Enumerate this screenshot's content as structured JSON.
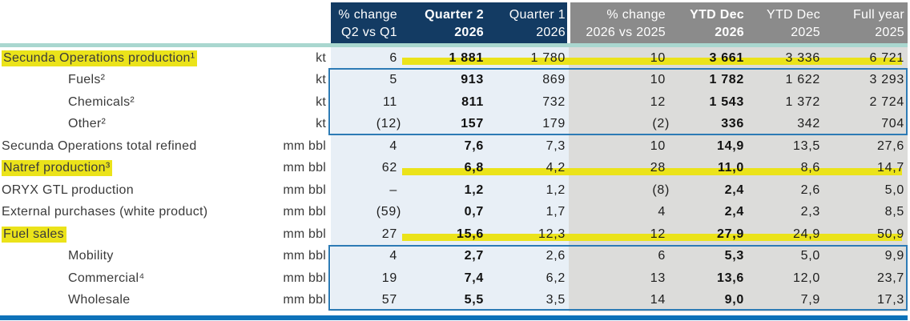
{
  "colors": {
    "navy": "#133b63",
    "header_gray": "#8b8b8b",
    "band_yellow": "#ebe31a",
    "body_blue": "#e8eff6",
    "body_gray": "#dcdcda",
    "teal_rule": "#a9d7cf",
    "box_border_blue": "#2d7bb5",
    "bottom_rule_blue": "#0e72b9",
    "label_text": "#3a3a3a",
    "number_text": "#1d1d1d",
    "header_text": "#ffffff"
  },
  "table": {
    "columns": [
      {
        "line1": "% change",
        "line2": "Q2 vs Q1",
        "group": "quarter",
        "bold": false
      },
      {
        "line1": "Quarter 2",
        "line2": "2026",
        "group": "quarter",
        "bold": true
      },
      {
        "line1": "Quarter 1",
        "line2": "2026",
        "group": "quarter",
        "bold": false
      },
      {
        "line1": "% change",
        "line2": "2026 vs 2025",
        "group": "ytd",
        "bold": false
      },
      {
        "line1": "YTD Dec",
        "line2": "2026",
        "group": "ytd",
        "bold": true
      },
      {
        "line1": "YTD Dec",
        "line2": "2025",
        "group": "ytd",
        "bold": false
      },
      {
        "line1": "Full year",
        "line2": "2025",
        "group": "ytd",
        "bold": false
      }
    ],
    "rows": [
      {
        "label": "Secunda Operations production¹",
        "unit": "kt",
        "indent": false,
        "highlight": true,
        "values": [
          "6",
          "1 881",
          "1 780",
          "10",
          "3 661",
          "3 336",
          "6 721"
        ]
      },
      {
        "label": "Fuels²",
        "unit": "kt",
        "indent": true,
        "highlight": false,
        "values": [
          "5",
          "913",
          "869",
          "10",
          "1 782",
          "1 622",
          "3 293"
        ]
      },
      {
        "label": "Chemicals²",
        "unit": "kt",
        "indent": true,
        "highlight": false,
        "values": [
          "11",
          "811",
          "732",
          "12",
          "1 543",
          "1 372",
          "2 724"
        ]
      },
      {
        "label": "Other²",
        "unit": "kt",
        "indent": true,
        "highlight": false,
        "values": [
          "(12)",
          "157",
          "179",
          "(2)",
          "336",
          "342",
          "704"
        ]
      },
      {
        "label": "Secunda Operations total refined",
        "unit": "mm bbl",
        "indent": false,
        "highlight": false,
        "values": [
          "4",
          "7,6",
          "7,3",
          "10",
          "14,9",
          "13,5",
          "27,6"
        ]
      },
      {
        "label": "Natref production³",
        "unit": "mm bbl",
        "indent": false,
        "highlight": true,
        "values": [
          "62",
          "6,8",
          "4,2",
          "28",
          "11,0",
          "8,6",
          "14,7"
        ]
      },
      {
        "label": "ORYX GTL production",
        "unit": "mm bbl",
        "indent": false,
        "highlight": false,
        "values": [
          "–",
          "1,2",
          "1,2",
          "(8)",
          "2,4",
          "2,6",
          "5,0"
        ]
      },
      {
        "label": "External purchases (white product)",
        "unit": "mm bbl",
        "indent": false,
        "highlight": false,
        "values": [
          "(59)",
          "0,7",
          "1,7",
          "4",
          "2,4",
          "2,3",
          "8,5"
        ]
      },
      {
        "label": "Fuel sales",
        "unit": "mm bbl",
        "indent": false,
        "highlight": true,
        "values": [
          "27",
          "15,6",
          "12,3",
          "12",
          "27,9",
          "24,9",
          "50,9"
        ]
      },
      {
        "label": "Mobility",
        "unit": "mm bbl",
        "indent": true,
        "highlight": false,
        "values": [
          "4",
          "2,7",
          "2,6",
          "6",
          "5,3",
          "5,0",
          "9,9"
        ]
      },
      {
        "label": "Commercial⁴",
        "unit": "mm bbl",
        "indent": true,
        "highlight": false,
        "values": [
          "19",
          "7,4",
          "6,2",
          "13",
          "13,6",
          "12,0",
          "23,7"
        ]
      },
      {
        "label": "Wholesale",
        "unit": "mm bbl",
        "indent": true,
        "highlight": false,
        "values": [
          "57",
          "5,5",
          "3,5",
          "14",
          "9,0",
          "7,9",
          "17,3"
        ]
      }
    ]
  }
}
